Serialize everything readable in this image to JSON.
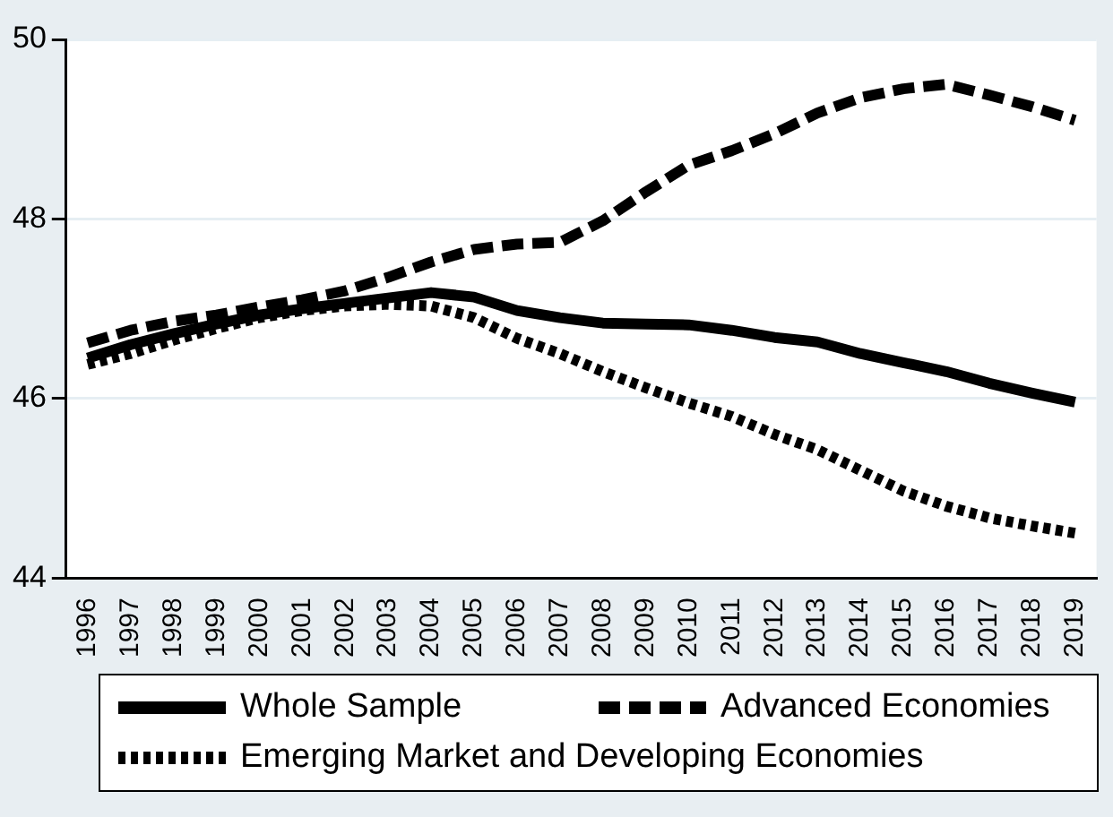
{
  "chart_data": {
    "type": "line",
    "categories": [
      "1996",
      "1997",
      "1998",
      "1999",
      "2000",
      "2001",
      "2002",
      "2003",
      "2004",
      "2005",
      "2006",
      "2007",
      "2008",
      "2009",
      "2010",
      "2011",
      "2012",
      "2013",
      "2014",
      "2015",
      "2016",
      "2017",
      "2018",
      "2019"
    ],
    "ylim": [
      44,
      50
    ],
    "yticks": [
      44,
      46,
      48,
      50
    ],
    "grid": "y",
    "legend": "bottom",
    "marker": "none",
    "series": [
      {
        "name": "Whole Sample",
        "color": "#000000",
        "line_style": "solid",
        "values": [
          46.45,
          46.6,
          46.72,
          46.83,
          46.93,
          47.0,
          47.06,
          47.12,
          47.18,
          47.13,
          46.98,
          46.9,
          46.84,
          46.83,
          46.82,
          46.76,
          46.68,
          46.63,
          46.5,
          46.4,
          46.3,
          46.17,
          46.06,
          45.96
        ]
      },
      {
        "name": "Advanced Economies",
        "color": "#000000",
        "line_style": "dashed",
        "values": [
          46.62,
          46.76,
          46.86,
          46.93,
          47.02,
          47.1,
          47.2,
          47.35,
          47.52,
          47.66,
          47.72,
          47.74,
          47.98,
          48.3,
          48.6,
          48.76,
          48.95,
          49.18,
          49.35,
          49.45,
          49.5,
          49.38,
          49.25,
          49.1
        ]
      },
      {
        "name": "Emerging Market and Developing Economies",
        "color": "#000000",
        "line_style": "dotted",
        "values": [
          46.38,
          46.5,
          46.65,
          46.78,
          46.9,
          46.98,
          47.03,
          47.05,
          47.03,
          46.9,
          46.67,
          46.5,
          46.3,
          46.12,
          45.95,
          45.8,
          45.6,
          45.43,
          45.2,
          44.97,
          44.8,
          44.67,
          44.58,
          44.5
        ]
      }
    ]
  }
}
